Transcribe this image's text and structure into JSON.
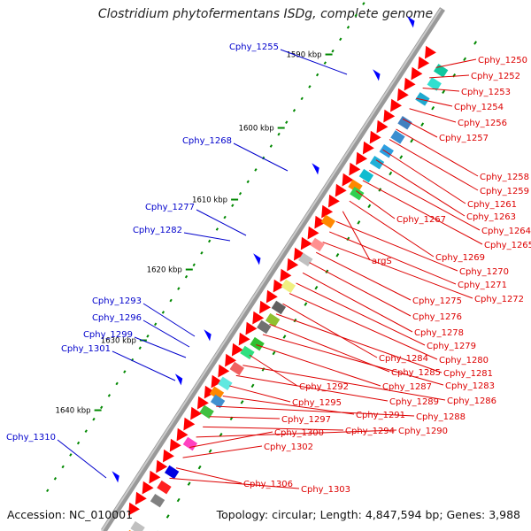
{
  "title": "Clostridium phytofermentans ISDg, complete genome",
  "footer": {
    "accession": "Accession: NC_010001",
    "summary": "Topology: circular; Length: 4,847,594 bp; Genes: 3,988"
  },
  "colors": {
    "forward_label": "#0000cc",
    "reverse_label": "#dd0000",
    "reverse_arrow": "#ff0000",
    "forward_arrow": "#0000ff",
    "backbone": "#888888",
    "tick": "#008800",
    "ruler_text": "#000000"
  },
  "ruler_labels": [
    "1590 kbp",
    "1600 kbp",
    "1610 kbp",
    "1620 kbp",
    "1630 kbp",
    "1640 kbp"
  ],
  "forward_labels": [
    "Cphy_1255",
    "Cphy_1268",
    "Cphy_1277",
    "Cphy_1282",
    "Cphy_1293",
    "Cphy_1296",
    "Cphy_1299",
    "Cphy_1301",
    "Cphy_1310"
  ],
  "reverse_labels": [
    "Cphy_1250",
    "Cphy_1252",
    "Cphy_1253",
    "Cphy_1254",
    "Cphy_1256",
    "Cphy_1257",
    "Cphy_1258",
    "Cphy_1259",
    "Cphy_1261",
    "Cphy_1263",
    "Cphy_1264",
    "Cphy_1265",
    "Cphy_1267",
    "Cphy_1269",
    "argS",
    "Cphy_1270",
    "Cphy_1271",
    "Cphy_1272",
    "Cphy_1275",
    "Cphy_1276",
    "Cphy_1278",
    "Cphy_1279",
    "Cphy_1280",
    "Cphy_1284",
    "Cphy_1281",
    "Cphy_1285",
    "Cphy_1283",
    "Cphy_1287",
    "Cphy_1292",
    "Cphy_1286",
    "Cphy_1289",
    "Cphy_1295",
    "Cphy_1291",
    "Cphy_1288",
    "Cphy_1297",
    "Cphy_1294",
    "Cphy_1290",
    "Cphy_1300",
    "Cphy_1302",
    "Cphy_1306",
    "Cphy_1303"
  ]
}
